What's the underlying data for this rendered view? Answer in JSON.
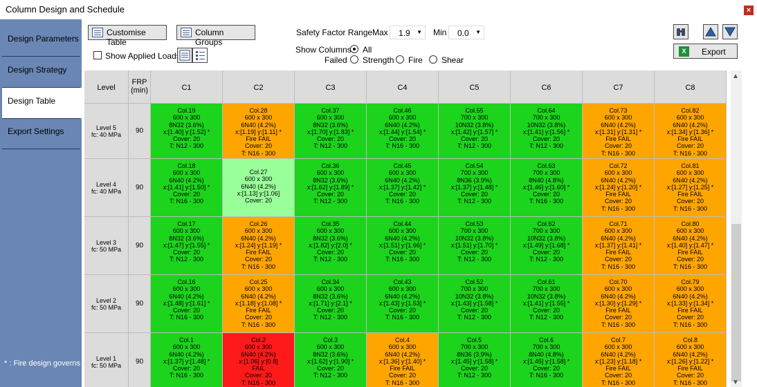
{
  "window": {
    "title": "Column Design and Schedule",
    "close": "×"
  },
  "sidebar": {
    "items": [
      {
        "label": "Design Parameters",
        "active": false
      },
      {
        "label": "Design Strategy",
        "active": false
      },
      {
        "label": "Design Table",
        "active": true
      },
      {
        "label": "Export Settings",
        "active": false
      }
    ],
    "footnote": "* : Fire design governs"
  },
  "toolbar": {
    "customise_label": "Customise Table",
    "groups_label": "Column Groups",
    "show_loads_label": "Show Applied Loads",
    "sf_label": "Safety Factor Range",
    "max_label": "Max",
    "max_value": "1.9",
    "min_label": "Min",
    "min_value": "0.0",
    "show_columns_label": "Show Columns",
    "all_label": "All",
    "failed_label": "Failed",
    "strength_label": "Strength",
    "fire_label": "Fire",
    "shear_label": "Shear",
    "export_label": "Export"
  },
  "icons": {
    "table": "table-icon",
    "list": "list-icon",
    "binoculars": "binoculars-icon",
    "up": "arrow-up-icon",
    "down": "arrow-down-icon",
    "excel": "excel-icon"
  },
  "colors": {
    "pass": "#1cd41c",
    "fail": "#ffa500",
    "highlight": "#99ff99",
    "critical": "#ff1a1a",
    "sidebar": "#6a86b4"
  },
  "grid": {
    "header_level": "Level",
    "header_frp": [
      "FRP",
      "(min)"
    ],
    "columns": [
      "C1",
      "C2",
      "C3",
      "C4",
      "C5",
      "C6",
      "C7",
      "C8"
    ],
    "rows": [
      {
        "level": "Level 5",
        "fc": "fc: 40 MPa",
        "frp": "90",
        "cells": [
          {
            "status": "green",
            "lines": [
              "Col.19",
              "600 x 300",
              "8N32 (3.6%)",
              "x:[1.40]  y:[1.52] *",
              "Cover: 20",
              "T: N12 - 300"
            ]
          },
          {
            "status": "orange",
            "lines": [
              "Col.28",
              "600 x 300",
              "6N40 (4.2%)",
              "x:[1.19]  y:[1.11] *",
              "Fire FAIL",
              "Cover: 20",
              "T: N16 - 300"
            ]
          },
          {
            "status": "green",
            "lines": [
              "Col.37",
              "600 x 300",
              "8N32 (3.6%)",
              "x:[1.70]  y:[1.83] *",
              "Cover: 20",
              "T: N12 - 300"
            ]
          },
          {
            "status": "green",
            "lines": [
              "Col.46",
              "600 x 300",
              "6N40 (4.2%)",
              "x:[1.44]  y:[1.54] *",
              "Cover: 20",
              "T: N16 - 300"
            ]
          },
          {
            "status": "green",
            "lines": [
              "Col.55",
              "700 x 300",
              "10N32 (3.8%)",
              "x:[1.42]  y:[1.57] *",
              "Cover: 20",
              "T: N12 - 300"
            ]
          },
          {
            "status": "green",
            "lines": [
              "Col.64",
              "700 x 300",
              "10N32 (3.8%)",
              "x:[1.41]  y:[1.56] *",
              "Cover: 20",
              "T: N12 - 300"
            ]
          },
          {
            "status": "orange",
            "lines": [
              "Col.73",
              "600 x 300",
              "6N40 (4.2%)",
              "x:[1.31]  y:[1.31] *",
              "Fire FAIL",
              "Cover: 20",
              "T: N16 - 300"
            ]
          },
          {
            "status": "orange",
            "lines": [
              "Col.82",
              "600 x 300",
              "6N40 (4.2%)",
              "x:[1.34]  y:[1.36] *",
              "Fire FAIL",
              "Cover: 20",
              "T: N16 - 300"
            ]
          }
        ]
      },
      {
        "level": "Level 4",
        "fc": "fc: 40 MPa",
        "frp": "90",
        "cells": [
          {
            "status": "green",
            "lines": [
              "Col.18",
              "600 x 300",
              "6N40 (4.2%)",
              "x:[1.41]  y:[1.50] *",
              "Cover: 20",
              "T: N16 - 300"
            ]
          },
          {
            "status": "lightgreen",
            "lines": [
              "Col.27",
              "600 x 300",
              "6N40 (4.2%)",
              "x:[1.13]  y:[1.06]",
              "Cover: 20"
            ]
          },
          {
            "status": "green",
            "lines": [
              "Col.36",
              "600 x 300",
              "8N32 (3.6%)",
              "x:[1.62]  y:[1.89] *",
              "Cover: 20",
              "T: N12 - 300"
            ]
          },
          {
            "status": "green",
            "lines": [
              "Col.45",
              "600 x 300",
              "6N40 (4.2%)",
              "x:[1.37]  y:[1.42] *",
              "Cover: 20",
              "T: N16 - 300"
            ]
          },
          {
            "status": "green",
            "lines": [
              "Col.54",
              "700 x 300",
              "8N36 (3.9%)",
              "x:[1.37]  y:[1.48] *",
              "Cover: 20",
              "T: N12 - 300"
            ]
          },
          {
            "status": "green",
            "lines": [
              "Col.63",
              "700 x 300",
              "8N40 (4.8%)",
              "x:[1.46]  y:[1.60] *",
              "Cover: 20",
              "T: N16 - 300"
            ]
          },
          {
            "status": "orange",
            "lines": [
              "Col.72",
              "600 x 300",
              "6N40 (4.2%)",
              "x:[1.24]  y:[1.20] *",
              "Fire FAIL",
              "Cover: 20",
              "T: N16 - 300"
            ]
          },
          {
            "status": "orange",
            "lines": [
              "Col.81",
              "600 x 300",
              "6N40 (4.2%)",
              "x:[1.27]  y:[1.25] *",
              "Fire FAIL",
              "Cover: 20",
              "T: N16 - 300"
            ]
          }
        ]
      },
      {
        "level": "Level 3",
        "fc": "fc: 50 MPa",
        "frp": "90",
        "cells": [
          {
            "status": "green",
            "lines": [
              "Col.17",
              "600 x 300",
              "8N32 (3.6%)",
              "x:[1.47]  y:[1.55] *",
              "Cover: 20",
              "T: N12 - 300"
            ]
          },
          {
            "status": "orange",
            "lines": [
              "Col.26",
              "600 x 300",
              "6N40 (4.2%)",
              "x:[1.24]  y:[1.19] *",
              "Fire FAIL",
              "Cover: 20",
              "T: N16 - 300"
            ]
          },
          {
            "status": "green",
            "lines": [
              "Col.35",
              "600 x 300",
              "8N32 (3.6%)",
              "x:[1.82]  y:[2.0] *",
              "Cover: 20",
              "T: N12 - 300"
            ]
          },
          {
            "status": "green",
            "lines": [
              "Col.44",
              "600 x 300",
              "6N40 (4.2%)",
              "x:[1.51]  y:[1.66] *",
              "Cover: 20",
              "T: N16 - 300"
            ]
          },
          {
            "status": "green",
            "lines": [
              "Col.53",
              "700 x 300",
              "10N32 (3.8%)",
              "x:[1.51]  y:[1.70] *",
              "Cover: 20",
              "T: N12 - 300"
            ]
          },
          {
            "status": "green",
            "lines": [
              "Col.62",
              "700 x 300",
              "10N32 (3.8%)",
              "x:[1.49]  y:[1.68] *",
              "Cover: 20",
              "T: N12 - 300"
            ]
          },
          {
            "status": "orange",
            "lines": [
              "Col.71",
              "600 x 300",
              "6N40 (4.2%)",
              "x:[1.37]  y:[1.41] *",
              "Fire FAIL",
              "Cover: 20",
              "T: N16 - 300"
            ]
          },
          {
            "status": "orange",
            "lines": [
              "Col.80",
              "600 x 300",
              "6N40 (4.2%)",
              "x:[1.40]  y:[1.47] *",
              "Fire FAIL",
              "Cover: 20",
              "T: N16 - 300"
            ]
          }
        ]
      },
      {
        "level": "Level 2",
        "fc": "fc: 50 MPa",
        "frp": "90",
        "cells": [
          {
            "status": "green",
            "lines": [
              "Col.16",
              "600 x 300",
              "6N40 (4.2%)",
              "x:[1.48]  y:[1.61] *",
              "Cover: 20",
              "T: N16 - 300"
            ]
          },
          {
            "status": "orange",
            "lines": [
              "Col.25",
              "600 x 300",
              "6N40 (4.2%)",
              "x:[1.18]  y:[1.08] *",
              "Fire FAIL",
              "Cover: 20",
              "T: N16 - 300"
            ]
          },
          {
            "status": "green",
            "lines": [
              "Col.34",
              "600 x 300",
              "8N32 (3.6%)",
              "x:[1.71]  y:[2.1] *",
              "Cover: 20",
              "T: N12 - 300"
            ]
          },
          {
            "status": "green",
            "lines": [
              "Col.43",
              "600 x 300",
              "6N40 (4.2%)",
              "x:[1.43]  y:[1.53] *",
              "Cover: 20",
              "T: N16 - 300"
            ]
          },
          {
            "status": "green",
            "lines": [
              "Col.52",
              "700 x 300",
              "10N32 (3.8%)",
              "x:[1.43]  y:[1.58] *",
              "Cover: 20",
              "T: N12 - 300"
            ]
          },
          {
            "status": "green",
            "lines": [
              "Col.61",
              "700 x 300",
              "10N32 (3.8%)",
              "x:[1.41]  y:[1.55] *",
              "Cover: 20",
              "T: N12 - 300"
            ]
          },
          {
            "status": "orange",
            "lines": [
              "Col.70",
              "600 x 300",
              "6N40 (4.2%)",
              "x:[1.30]  y:[1.29] *",
              "Fire FAIL",
              "Cover: 20",
              "T: N16 - 300"
            ]
          },
          {
            "status": "orange",
            "lines": [
              "Col.79",
              "600 x 300",
              "6N40 (4.2%)",
              "x:[1.33]  y:[1.34] *",
              "Fire FAIL",
              "Cover: 20",
              "T: N16 - 300"
            ]
          }
        ]
      },
      {
        "level": "Level 1",
        "fc": "fc: 50 MPa",
        "frp": "90",
        "cells": [
          {
            "status": "green",
            "lines": [
              "Col.1",
              "600 x 300",
              "6N40 (4.2%)",
              "x:[1.37]  y:[1.48] *",
              "Cover: 20",
              "T: N16 - 300"
            ]
          },
          {
            "status": "red",
            "lines": [
              "Col.2",
              "600 x 300",
              "6N40 (4.2%)",
              "x:[1.06]  y:[0.8]",
              "FAIL",
              "Cover: 20",
              "T: N16 - 300"
            ]
          },
          {
            "status": "green",
            "lines": [
              "Col.3",
              "600 x 300",
              "8N32 (3.6%)",
              "x:[1.62]  y:[1.90] *",
              "Cover: 20",
              "T: N12 - 300"
            ]
          },
          {
            "status": "orange",
            "lines": [
              "Col.4",
              "600 x 300",
              "6N40 (4.2%)",
              "x:[1.36]  y:[1.40] *",
              "Fire FAIL",
              "Cover: 20",
              "T: N16 - 300"
            ]
          },
          {
            "status": "green",
            "lines": [
              "Col.5",
              "700 x 300",
              "8N36 (3.9%)",
              "x:[1.45]  y:[1.58] *",
              "Cover: 20",
              "T: N12 - 300"
            ]
          },
          {
            "status": "green",
            "lines": [
              "Col.6",
              "700 x 300",
              "8N40 (4.8%)",
              "x:[1.45]  y:[1.58] *",
              "Cover: 20",
              "T: N16 - 300"
            ]
          },
          {
            "status": "orange",
            "lines": [
              "Col.7",
              "600 x 300",
              "6N40 (4.2%)",
              "x:[1.23]  y:[1.18] *",
              "Fire FAIL",
              "Cover: 20",
              "T: N16 - 300"
            ]
          },
          {
            "status": "orange",
            "lines": [
              "Col.8",
              "600 x 300",
              "6N40 (4.2%)",
              "x:[1.26]  y:[1.22] *",
              "Fire FAIL",
              "Cover: 20",
              "T: N16 - 300"
            ]
          }
        ]
      }
    ]
  }
}
